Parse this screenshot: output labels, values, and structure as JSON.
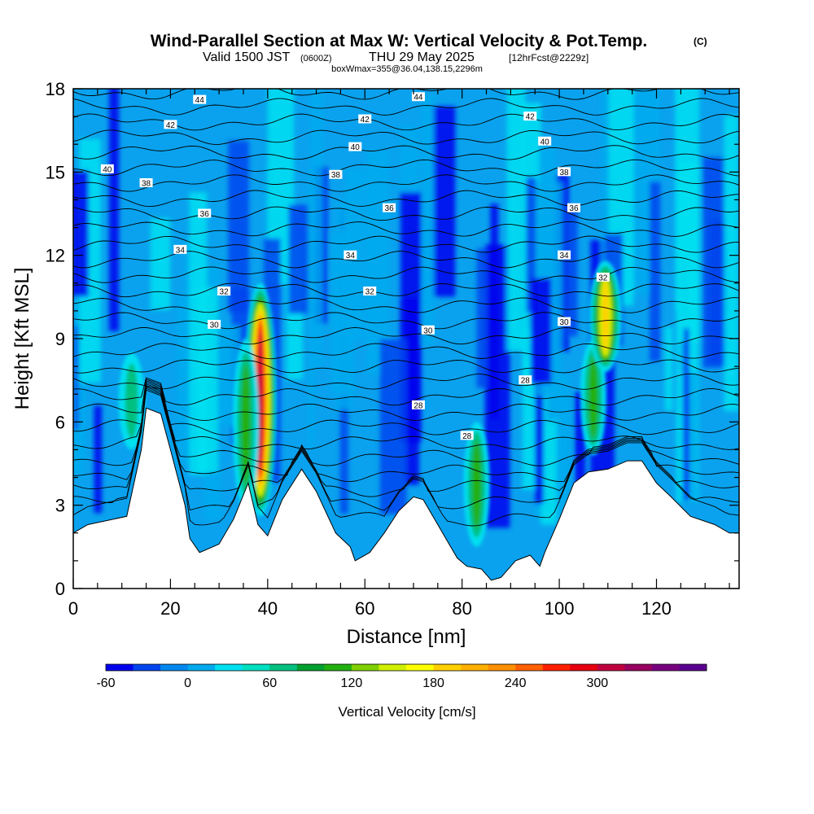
{
  "header": {
    "title": "Wind-Parallel Section at Max W: Vertical Velocity & Pot.Temp.",
    "copyright": "(C)",
    "valid_prefix": "Valid 1500 JST",
    "valid_utc": "(0600Z)",
    "valid_date": "THU 29 May 2025",
    "forecast": "[12hrFcst@2229z]",
    "box": "boxWmax=355@36.04,138.15,2296m"
  },
  "chart_data": {
    "type": "heatmap",
    "xlabel": "Distance [nm]",
    "ylabel": "Height [Kft MSL]",
    "xlim": [
      0,
      137
    ],
    "ylim": [
      0,
      18
    ],
    "x_ticks": [
      "0",
      "20",
      "40",
      "60",
      "80",
      "100",
      "120"
    ],
    "y_ticks": [
      "0",
      "3",
      "6",
      "9",
      "12",
      "15",
      "18"
    ],
    "colorbar": {
      "title": "Vertical Velocity [cm/s]",
      "min": -60,
      "step": 20,
      "ticks": [
        "-60",
        "0",
        "60",
        "120",
        "180",
        "240",
        "300"
      ],
      "colors": [
        "#0000ee",
        "#0044ee",
        "#0088ee",
        "#00aaee",
        "#00e0f0",
        "#00e0c0",
        "#00c080",
        "#00a030",
        "#22b010",
        "#80d000",
        "#d0f000",
        "#ffff00",
        "#ffd000",
        "#ffb000",
        "#ff9000",
        "#ff6000",
        "#ff2000",
        "#e80010",
        "#c00040",
        "#980060",
        "#780080",
        "#5a0090"
      ]
    },
    "terrain_kft": [
      [
        0,
        2
      ],
      [
        3,
        2.3
      ],
      [
        11,
        2.6
      ],
      [
        14,
        5
      ],
      [
        15,
        6.5
      ],
      [
        18,
        6.3
      ],
      [
        20,
        5
      ],
      [
        23,
        3
      ],
      [
        24,
        1.8
      ],
      [
        26,
        1.3
      ],
      [
        30,
        1.6
      ],
      [
        33,
        2.5
      ],
      [
        36,
        3.8
      ],
      [
        38,
        2.3
      ],
      [
        40,
        1.9
      ],
      [
        43,
        3.2
      ],
      [
        47,
        4.3
      ],
      [
        50,
        3.5
      ],
      [
        54,
        2
      ],
      [
        57,
        1.5
      ],
      [
        58,
        1
      ],
      [
        61,
        1.3
      ],
      [
        64,
        2
      ],
      [
        67,
        2.8
      ],
      [
        70,
        3.3
      ],
      [
        72,
        3.2
      ],
      [
        75,
        2.3
      ],
      [
        79,
        1.1
      ],
      [
        81,
        0.8
      ],
      [
        84,
        0.7
      ],
      [
        86,
        0.3
      ],
      [
        88,
        0.4
      ],
      [
        91,
        1
      ],
      [
        94,
        1.2
      ],
      [
        96,
        0.8
      ],
      [
        97,
        1.3
      ],
      [
        100,
        2.5
      ],
      [
        103,
        3.8
      ],
      [
        106,
        4.2
      ],
      [
        110,
        4.3
      ],
      [
        114,
        4.6
      ],
      [
        117,
        4.6
      ],
      [
        120,
        3.8
      ],
      [
        123,
        3.3
      ],
      [
        127,
        2.6
      ],
      [
        132,
        2.3
      ],
      [
        135,
        2
      ],
      [
        137,
        2
      ]
    ],
    "updraft_cores": [
      {
        "x": 38.5,
        "top_kft": 11.0,
        "bottom_kft": 2.6,
        "max_w": 300
      },
      {
        "x": 35.5,
        "top_kft": 9.0,
        "bottom_kft": 2.8,
        "max_w": 120
      },
      {
        "x": 83.0,
        "top_kft": 6.0,
        "bottom_kft": 1.5,
        "max_w": 130
      },
      {
        "x": 107.0,
        "top_kft": 9.0,
        "bottom_kft": 4.8,
        "max_w": 100
      },
      {
        "x": 109.5,
        "top_kft": 11.8,
        "bottom_kft": 7.8,
        "max_w": 200
      },
      {
        "x": 12.0,
        "top_kft": 8.5,
        "bottom_kft": 5.0,
        "max_w": 70
      }
    ],
    "theta_contours": [
      {
        "value": "28",
        "height_kft": 5.3
      },
      {
        "value": "30",
        "height_kft": 8.7
      },
      {
        "value": "32",
        "height_kft": 10.6
      },
      {
        "value": "34",
        "height_kft": 11.9
      },
      {
        "value": "36",
        "height_kft": 13.6
      },
      {
        "value": "38",
        "height_kft": 15.0
      },
      {
        "value": "40",
        "height_kft": 16.0
      },
      {
        "value": "42",
        "height_kft": 16.9
      },
      {
        "value": "44",
        "height_kft": 17.6
      }
    ],
    "contour_labels": [
      {
        "text": "44",
        "x": 26,
        "y": 17.6
      },
      {
        "text": "44",
        "x": 71,
        "y": 17.7
      },
      {
        "text": "42",
        "x": 20,
        "y": 16.7
      },
      {
        "text": "42",
        "x": 60,
        "y": 16.9
      },
      {
        "text": "42",
        "x": 94,
        "y": 17.0
      },
      {
        "text": "40",
        "x": 7,
        "y": 15.1
      },
      {
        "text": "40",
        "x": 58,
        "y": 15.9
      },
      {
        "text": "40",
        "x": 97,
        "y": 16.1
      },
      {
        "text": "38",
        "x": 15,
        "y": 14.6
      },
      {
        "text": "38",
        "x": 54,
        "y": 14.9
      },
      {
        "text": "38",
        "x": 101,
        "y": 15.0
      },
      {
        "text": "36",
        "x": 27,
        "y": 13.5
      },
      {
        "text": "36",
        "x": 65,
        "y": 13.7
      },
      {
        "text": "36",
        "x": 103,
        "y": 13.7
      },
      {
        "text": "34",
        "x": 22,
        "y": 12.2
      },
      {
        "text": "34",
        "x": 57,
        "y": 12.0
      },
      {
        "text": "34",
        "x": 101,
        "y": 12.0
      },
      {
        "text": "32",
        "x": 31,
        "y": 10.7
      },
      {
        "text": "32",
        "x": 61,
        "y": 10.7
      },
      {
        "text": "32",
        "x": 109,
        "y": 11.2
      },
      {
        "text": "30",
        "x": 29,
        "y": 9.5
      },
      {
        "text": "30",
        "x": 73,
        "y": 9.3
      },
      {
        "text": "30",
        "x": 101,
        "y": 9.6
      },
      {
        "text": "28",
        "x": 71,
        "y": 6.6
      },
      {
        "text": "28",
        "x": 93,
        "y": 7.5
      },
      {
        "text": "28",
        "x": 81,
        "y": 5.5
      }
    ]
  }
}
